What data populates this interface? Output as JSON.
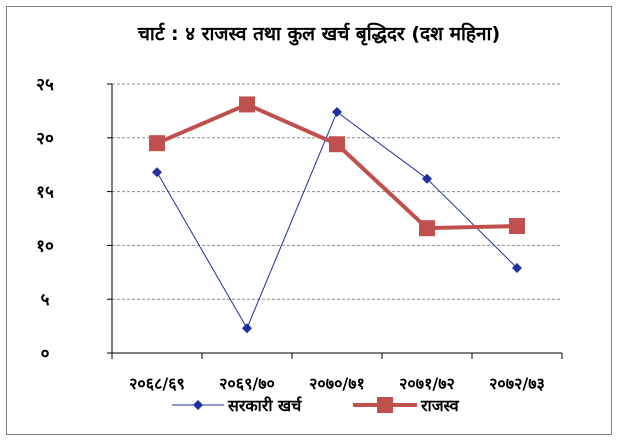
{
  "chart_data": {
    "type": "line",
    "title": "चार्ट : ४ राजस्व  तथा कुल खर्च बृद्धिदर (दश महिना)",
    "categories": [
      "२०६८/६९",
      "२०६९/७०",
      "२०७०/७१",
      "२०७१/७२",
      "२०७२/७३"
    ],
    "yticks": [
      "०",
      "५",
      "१०",
      "१५",
      "२०",
      "२५"
    ],
    "ylim": [
      0,
      25
    ],
    "grid": true,
    "legend_position": "bottom",
    "series": [
      {
        "name": "सरकारी खर्च",
        "values": [
          16.8,
          2.3,
          22.4,
          16.2,
          7.9
        ],
        "color": "#1f2fa0",
        "marker": "diamond"
      },
      {
        "name": "राजस्व",
        "values": [
          19.5,
          23.1,
          19.4,
          11.6,
          11.8
        ],
        "color": "#c0504d",
        "marker": "square"
      }
    ]
  }
}
